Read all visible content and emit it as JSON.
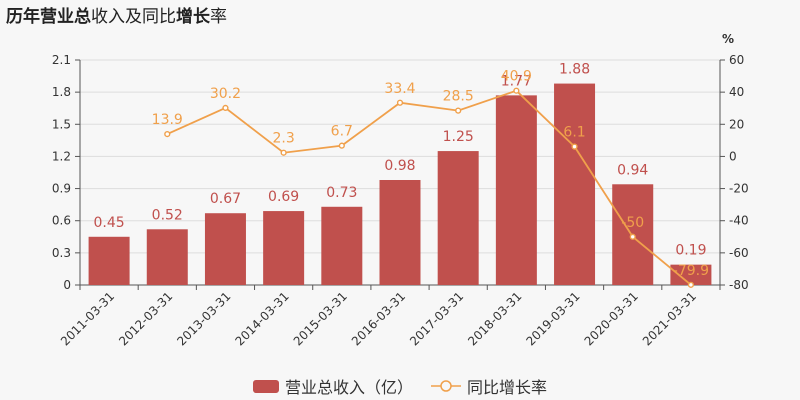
{
  "title": {
    "part1": "历年",
    "part2": "营业总",
    "part3": "收入及同比",
    "part4": "增长",
    "part5": "率"
  },
  "colors": {
    "bar": "#c0504d",
    "line": "#f0a04b",
    "bar_label": "#c0504d",
    "line_label": "#f0a04b",
    "axis_text": "#333333",
    "grid": "#dddddd"
  },
  "legend": {
    "bar_label": "营业总收入（亿）",
    "line_label": "同比增长率"
  },
  "chart_data": {
    "type": "bar",
    "categories": [
      "2011-03-31",
      "2012-03-31",
      "2013-03-31",
      "2014-03-31",
      "2015-03-31",
      "2016-03-31",
      "2017-03-31",
      "2018-03-31",
      "2019-03-31",
      "2020-03-31",
      "2021-03-31"
    ],
    "series": [
      {
        "name": "营业总收入（亿）",
        "type": "bar",
        "axis": "left",
        "values": [
          0.45,
          0.52,
          0.67,
          0.69,
          0.73,
          0.98,
          1.25,
          1.77,
          1.88,
          0.94,
          0.19
        ],
        "labels": [
          "0.45",
          "0.52",
          "0.67",
          "0.69",
          "0.73",
          "0.98",
          "1.25",
          "1.77",
          "1.88",
          "0.94",
          "0.19"
        ]
      },
      {
        "name": "同比增长率",
        "type": "line",
        "axis": "right",
        "values": [
          null,
          13.9,
          30.2,
          2.3,
          6.7,
          33.4,
          28.5,
          40.9,
          6.1,
          -50,
          -79.9
        ],
        "labels": [
          "",
          "13.9",
          "30.2",
          "2.3",
          "6.7",
          "33.4",
          "28.5",
          "40.9",
          "6.1",
          "-50",
          "-79.9"
        ]
      }
    ],
    "y_left": {
      "min": 0,
      "max": 2.1,
      "ticks": [
        "0",
        "0.3",
        "0.6",
        "0.9",
        "1.2",
        "1.5",
        "1.8",
        "2.1"
      ]
    },
    "y_right": {
      "min": -80,
      "max": 60,
      "unit": "%",
      "ticks": [
        "-80",
        "-60",
        "-40",
        "-20",
        "0",
        "20",
        "40",
        "60"
      ]
    },
    "grid": true,
    "legend_position": "bottom"
  }
}
